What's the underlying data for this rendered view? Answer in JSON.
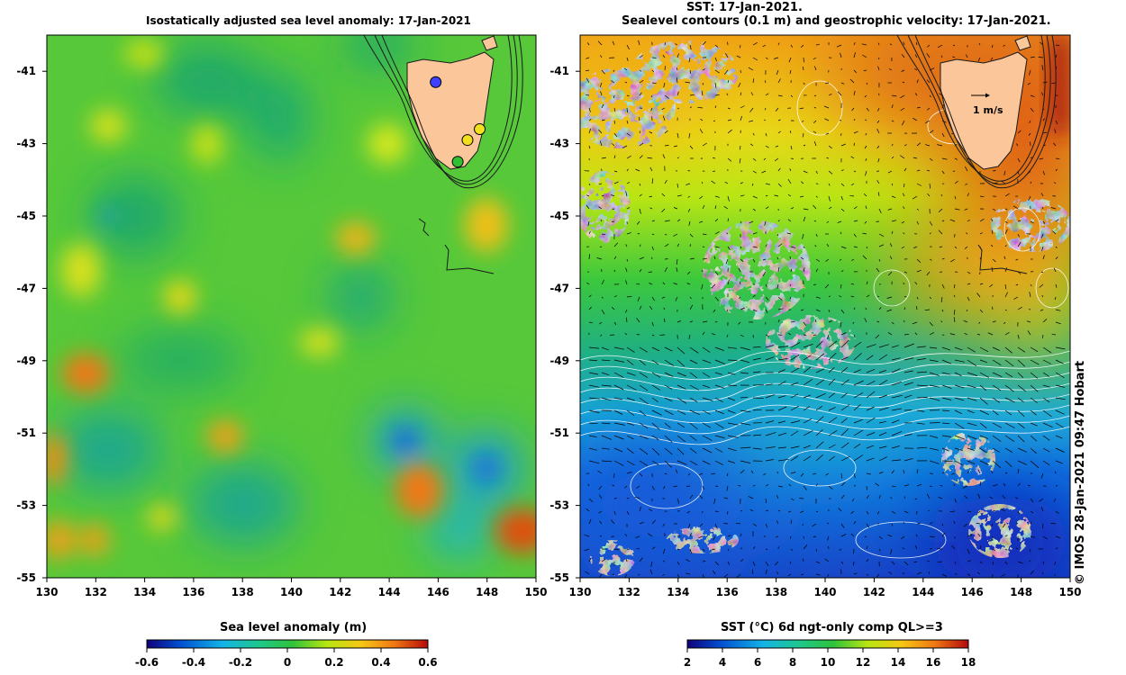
{
  "left_panel": {
    "title": "Isostatically adjusted sea level anomaly: 17-Jan-2021",
    "colorbar": {
      "label": "Sea level anomaly (m)",
      "ticks": [
        "-0.6",
        "-0.4",
        "-0.2",
        "0",
        "0.2",
        "0.4",
        "0.6"
      ]
    }
  },
  "right_panel": {
    "title_line1": "SST: 17-Jan-2021.",
    "title_line2": "Sealevel contours (0.1 m) and geostrophic velocity: 17-Jan-2021.",
    "scale_label": "1 m/s",
    "colorbar": {
      "label": "SST (°C) 6d ngt-only comp QL>=3",
      "ticks": [
        "2",
        "4",
        "6",
        "8",
        "10",
        "12",
        "14",
        "16",
        "18"
      ]
    }
  },
  "axes": {
    "lon_ticks": [
      "130",
      "132",
      "134",
      "136",
      "138",
      "140",
      "142",
      "144",
      "146",
      "148",
      "150"
    ],
    "lat_ticks": [
      "-41",
      "-43",
      "-45",
      "-47",
      "-49",
      "-51",
      "-53",
      "-55"
    ],
    "lon_range": [
      130,
      150
    ],
    "lat_range": [
      -55,
      -40
    ]
  },
  "stamp": "© IMOS 28-Jan-2021 09:47 Hobart",
  "colors": {
    "land": "#fbc79a",
    "coast": "#1a1a1a",
    "sla_scale": [
      "#10007a",
      "#0050d0",
      "#14b4e6",
      "#1ec88c",
      "#2fc23a",
      "#b6e612",
      "#f5c814",
      "#f07814",
      "#b40a0a"
    ],
    "sst_scale": [
      "#10007a",
      "#0050d0",
      "#14b4e6",
      "#1ec88c",
      "#2fc23a",
      "#b6e612",
      "#f5c814",
      "#f07814",
      "#b40a0a"
    ]
  },
  "markers": [
    {
      "lon": 145.9,
      "lat": -41.3,
      "color": "#4040ff"
    },
    {
      "lon": 147.7,
      "lat": -42.6,
      "color": "#f0e020"
    },
    {
      "lon": 147.2,
      "lat": -42.9,
      "color": "#f0e020"
    },
    {
      "lon": 146.8,
      "lat": -43.5,
      "color": "#30c030"
    }
  ]
}
